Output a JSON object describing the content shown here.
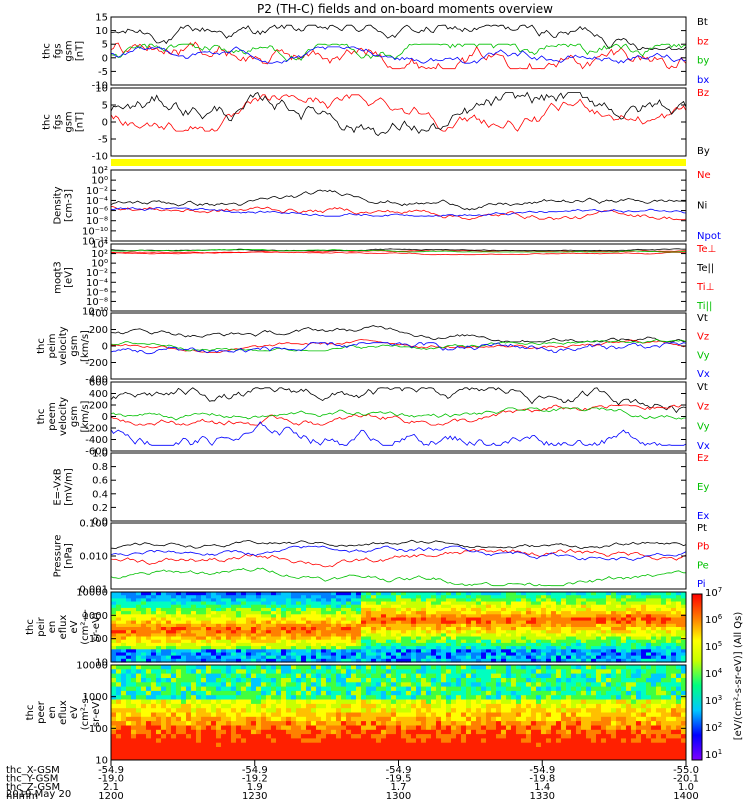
{
  "title": "P2 (TH-C) fields and on-board moments overview",
  "date_label": "2019 May 20",
  "x_axis": {
    "rows": [
      {
        "name": "thc_X-GSM",
        "values": [
          "-54.9",
          "-54.9",
          "-54.9",
          "-54.9",
          "-55.0"
        ]
      },
      {
        "name": "thc_Y-GSM",
        "values": [
          "-19.0",
          "-19.2",
          "-19.5",
          "-19.8",
          "-20.1"
        ]
      },
      {
        "name": "thc_Z-GSM",
        "values": [
          "2.1",
          "1.9",
          "1.7",
          "1.4",
          "1.0"
        ]
      },
      {
        "name": "hhmm",
        "values": [
          "1200",
          "1230",
          "1300",
          "1330",
          "1400"
        ]
      }
    ]
  },
  "colorbar": {
    "label": "[eV/(cm²-s-sr-eV)] (All Qs)",
    "exponents": [
      "1",
      "2",
      "3",
      "4",
      "5",
      "6",
      "7"
    ]
  },
  "chart_data": [
    {
      "type": "line",
      "ylabel": [
        "thc",
        "fgs",
        "gsm",
        "[nT]"
      ],
      "ylim": [
        -10,
        15
      ],
      "ticks": [
        "15",
        "10",
        "5",
        "0",
        "-5",
        "-10"
      ],
      "series": [
        {
          "name": "Bt",
          "color": "#000000"
        },
        {
          "name": "bz",
          "color": "#ff0000"
        },
        {
          "name": "by",
          "color": "#00c000"
        },
        {
          "name": "bx",
          "color": "#0000ff"
        }
      ]
    },
    {
      "type": "line",
      "ylabel": [
        "thc",
        "fgs",
        "gsm",
        "[nT]"
      ],
      "ylim": [
        -15,
        15
      ],
      "ticks": [
        "10",
        "5",
        "0",
        "-5",
        "-10"
      ],
      "series": [
        {
          "name": "Bz",
          "color": "#ff0000"
        },
        {
          "name": "By",
          "color": "#000000"
        }
      ]
    },
    {
      "type": "line",
      "ylabel": [
        "Density",
        "[cm-3]"
      ],
      "scale": "log",
      "ticks": [
        "10²",
        "10⁰",
        "10⁻²",
        "10⁻⁴",
        "10⁻⁶",
        "10⁻⁸",
        "10⁻¹⁰",
        "10⁻¹²"
      ],
      "series": [
        {
          "name": "Ne",
          "color": "#ff0000"
        },
        {
          "name": "Ni",
          "color": "#000000"
        },
        {
          "name": "Npot",
          "color": "#0000ff"
        }
      ]
    },
    {
      "type": "line",
      "ylabel": [
        "moqt3",
        "[eV]"
      ],
      "scale": "log",
      "ticks": [
        "10⁴",
        "10²",
        "10⁰",
        "10⁻²",
        "10⁻⁴",
        "10⁻⁶",
        "10⁻⁸",
        "10⁻¹⁰"
      ],
      "series": [
        {
          "name": "Te⊥",
          "color": "#ff0000"
        },
        {
          "name": "Te||",
          "color": "#000000"
        },
        {
          "name": "Ti⊥",
          "color": "#ff0000"
        },
        {
          "name": "Ti||",
          "color": "#00c000"
        }
      ]
    },
    {
      "type": "line",
      "ylabel": [
        "thc",
        "peim",
        "velocity",
        "gsm",
        "[km/s]"
      ],
      "ylim": [
        -400,
        400
      ],
      "ticks": [
        "400",
        "200",
        "0",
        "-200",
        "-400"
      ],
      "series": [
        {
          "name": "Vt",
          "color": "#000000"
        },
        {
          "name": "Vz",
          "color": "#ff0000"
        },
        {
          "name": "Vy",
          "color": "#00c000"
        },
        {
          "name": "Vx",
          "color": "#0000ff"
        }
      ]
    },
    {
      "type": "line",
      "ylabel": [
        "thc",
        "peem",
        "velocity",
        "gsm",
        "[km/s]"
      ],
      "ylim": [
        -600,
        600
      ],
      "ticks": [
        "600",
        "400",
        "200",
        "0",
        "-200",
        "-400",
        "-600"
      ],
      "series": [
        {
          "name": "Vt",
          "color": "#000000"
        },
        {
          "name": "Vz",
          "color": "#ff0000"
        },
        {
          "name": "Vy",
          "color": "#00c000"
        },
        {
          "name": "Vx",
          "color": "#0000ff"
        }
      ]
    },
    {
      "type": "line",
      "ylabel": [
        "E=-VxB",
        "[mV/m]"
      ],
      "ylim": [
        0,
        1
      ],
      "ticks": [
        "1.0",
        "0.8",
        "0.6",
        "0.4",
        "0.2",
        "0.0"
      ],
      "series": [
        {
          "name": "Ez",
          "color": "#ff0000"
        },
        {
          "name": "Ey",
          "color": "#00c000"
        },
        {
          "name": "Ex",
          "color": "#0000ff"
        }
      ]
    },
    {
      "type": "line",
      "ylabel": [
        "Pressure",
        "[nPa]"
      ],
      "scale": "log",
      "ylim": [
        0.001,
        0.1
      ],
      "ticks": [
        "0.100",
        "0.010",
        "0.001"
      ],
      "series": [
        {
          "name": "Pt",
          "color": "#000000"
        },
        {
          "name": "Pb",
          "color": "#ff0000"
        },
        {
          "name": "Pe",
          "color": "#00c000"
        },
        {
          "name": "Pi",
          "color": "#0000ff"
        }
      ]
    },
    {
      "type": "heatmap",
      "ylabel": [
        "thc",
        "peir",
        "en",
        "eflux",
        "eV",
        "(cm²-s-",
        "sr-eV)"
      ],
      "scale": "log",
      "ticks": [
        "10000",
        "1000",
        "100",
        "10"
      ]
    },
    {
      "type": "heatmap",
      "ylabel": [
        "thc",
        "peer",
        "en",
        "eflux",
        "eV",
        "(cm²-s-",
        "sr-eV)"
      ],
      "scale": "log",
      "ticks": [
        "10000",
        "1000",
        "100",
        "10"
      ]
    }
  ]
}
